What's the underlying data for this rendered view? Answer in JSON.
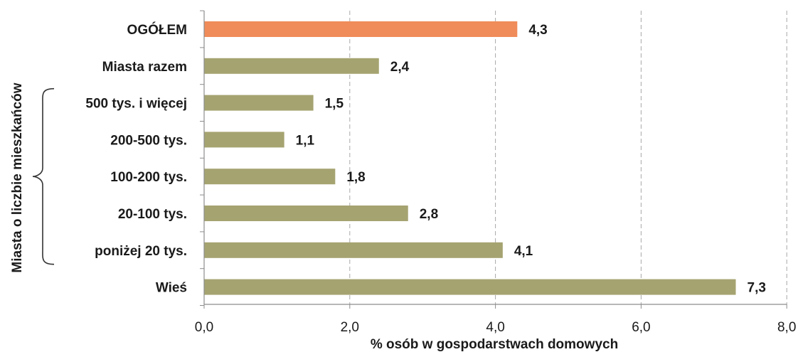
{
  "chart_data": {
    "type": "bar",
    "orientation": "horizontal",
    "categories": [
      "OGÓŁEM",
      "Miasta razem",
      "500 tys. i więcej",
      "200-500 tys.",
      "100-200 tys.",
      "20-100 tys.",
      "poniżej 20 tys.",
      "Wieś"
    ],
    "values": [
      4.3,
      2.4,
      1.5,
      1.1,
      1.8,
      2.8,
      4.1,
      7.3
    ],
    "value_labels": [
      "4,3",
      "2,4",
      "1,5",
      "1,1",
      "1,8",
      "2,8",
      "4,1",
      "7,3"
    ],
    "highlight_index": 0,
    "xlabel": "% osób w gospodarstwach domowych",
    "ylabel": "",
    "xlim": [
      0,
      8
    ],
    "xticks": [
      0,
      2,
      4,
      6,
      8
    ],
    "xtick_labels": [
      "0,0",
      "2,0",
      "4,0",
      "6,0",
      "8,0"
    ],
    "grid": "vertical dashed",
    "group_label": "Miasta o liczbie mieszkańców",
    "group_range": [
      "500 tys. i więcej",
      "poniżej 20 tys."
    ],
    "colors": {
      "highlight": "#f08c5a",
      "bar": "#a5a370",
      "grid": "#a8a8a8",
      "axis": "#8c8c8c"
    }
  }
}
